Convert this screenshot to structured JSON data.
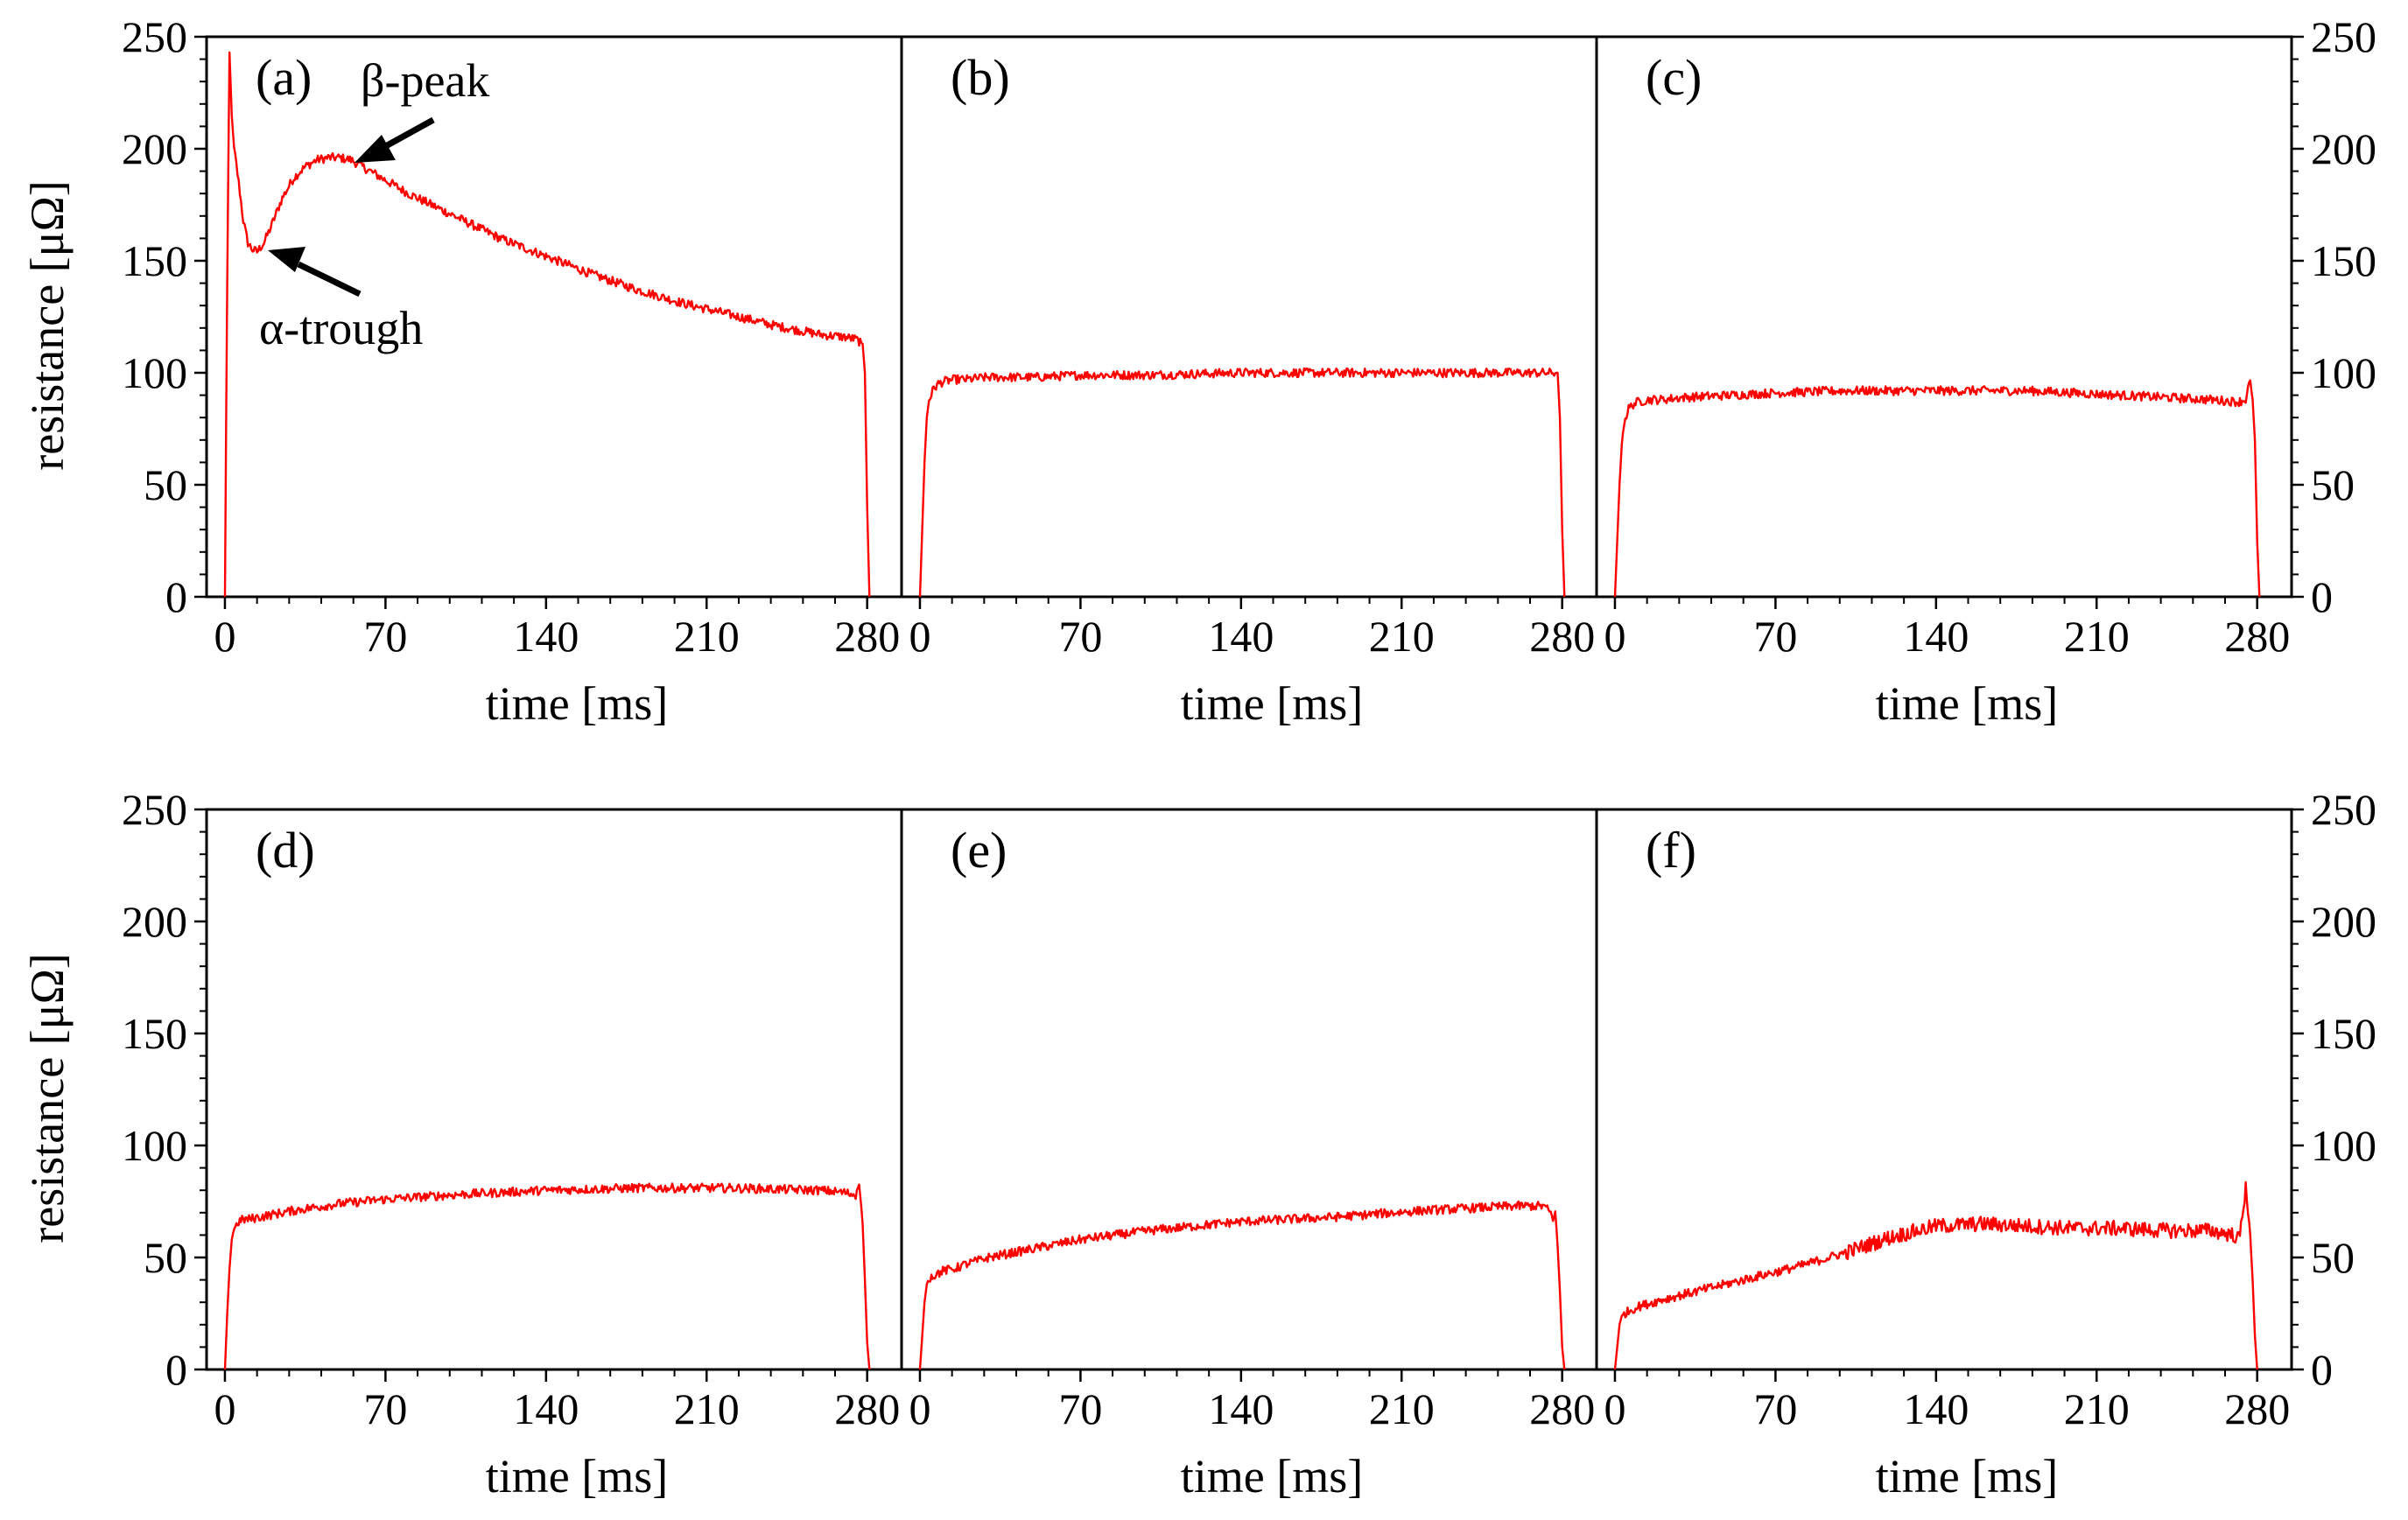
{
  "chart_data": [
    {
      "type": "line",
      "panel_label": "(a)",
      "xlabel": "time [ms]",
      "ylabel": "resistance [μΩ]",
      "xlim": [
        -8,
        295
      ],
      "ylim": [
        0,
        250
      ],
      "xticks": [
        "0",
        "70",
        "140",
        "210",
        "280"
      ],
      "yticks": [
        "0",
        "50",
        "100",
        "150",
        "200",
        "250"
      ],
      "series": [
        {
          "name": "resistance",
          "color": "#ff0000",
          "x": [
            0,
            0.6,
            1.2,
            2,
            3,
            4,
            6,
            8,
            10,
            12,
            14,
            17,
            20,
            25,
            30,
            35,
            40,
            45,
            50,
            55,
            60,
            70,
            80,
            90,
            100,
            120,
            140,
            160,
            180,
            200,
            220,
            240,
            260,
            270,
            275,
            278,
            279,
            280,
            281
          ],
          "y": [
            0,
            90,
            165,
            243,
            215,
            200,
            185,
            168,
            158,
            155,
            154,
            158,
            165,
            178,
            187,
            192,
            195,
            196,
            196,
            195,
            192,
            186,
            180,
            175,
            170,
            160,
            152,
            144,
            137,
            131,
            126,
            121,
            117,
            116,
            115,
            113,
            100,
            40,
            0
          ]
        }
      ],
      "annotations": [
        {
          "text": "β-peak",
          "points_to": {
            "x": 52,
            "y": 196
          }
        },
        {
          "text": "α-trough",
          "points_to": {
            "x": 13,
            "y": 154
          }
        }
      ]
    },
    {
      "type": "line",
      "panel_label": "(b)",
      "xlabel": "time [ms]",
      "xlim": [
        -8,
        295
      ],
      "ylim": [
        0,
        250
      ],
      "xticks": [
        "0",
        "70",
        "140",
        "210",
        "280"
      ],
      "series": [
        {
          "name": "resistance",
          "color": "#ff0000",
          "x": [
            0,
            1,
            2,
            3,
            4,
            6,
            8,
            10,
            15,
            20,
            30,
            50,
            70,
            100,
            140,
            180,
            220,
            260,
            275,
            278,
            279,
            280,
            281
          ],
          "y": [
            0,
            30,
            60,
            80,
            88,
            93,
            95,
            96,
            97,
            97,
            98,
            98,
            99,
            99,
            100,
            100,
            100,
            100,
            100,
            100,
            80,
            30,
            0
          ]
        }
      ]
    },
    {
      "type": "line",
      "panel_label": "(c)",
      "xlabel": "time [ms]",
      "xlim": [
        -8,
        295
      ],
      "ylim": [
        0,
        250
      ],
      "xticks": [
        "0",
        "70",
        "140",
        "210",
        "280"
      ],
      "yticks": [
        "0",
        "50",
        "100",
        "150",
        "200",
        "250"
      ],
      "series": [
        {
          "name": "resistance",
          "color": "#ff0000",
          "x": [
            0,
            1,
            2,
            3,
            4,
            6,
            8,
            10,
            15,
            20,
            30,
            50,
            70,
            100,
            140,
            180,
            220,
            260,
            272,
            275,
            276,
            277,
            278,
            279,
            280,
            281
          ],
          "y": [
            0,
            25,
            50,
            68,
            78,
            84,
            86,
            87,
            88,
            88,
            89,
            90,
            91,
            92,
            92,
            92,
            90,
            88,
            87,
            88,
            93,
            96,
            88,
            70,
            25,
            0
          ]
        }
      ]
    },
    {
      "type": "line",
      "panel_label": "(d)",
      "xlabel": "time [ms]",
      "ylabel": "resistance [μΩ]",
      "xlim": [
        -8,
        295
      ],
      "ylim": [
        0,
        250
      ],
      "xticks": [
        "0",
        "70",
        "140",
        "210",
        "280"
      ],
      "yticks": [
        "0",
        "50",
        "100",
        "150",
        "200",
        "250"
      ],
      "series": [
        {
          "name": "resistance",
          "color": "#ff0000",
          "x": [
            0,
            1,
            2,
            3,
            4,
            6,
            8,
            10,
            15,
            20,
            30,
            50,
            70,
            100,
            140,
            180,
            220,
            260,
            270,
            275,
            276,
            277,
            278,
            279,
            280,
            281
          ],
          "y": [
            0,
            25,
            45,
            58,
            63,
            66,
            67,
            67,
            68,
            69,
            71,
            74,
            76,
            78,
            80,
            81,
            81,
            80,
            79,
            78,
            83,
            79,
            65,
            40,
            12,
            0
          ]
        }
      ]
    },
    {
      "type": "line",
      "panel_label": "(e)",
      "xlabel": "time [ms]",
      "xlim": [
        -8,
        295
      ],
      "ylim": [
        0,
        250
      ],
      "xticks": [
        "0",
        "70",
        "140",
        "210",
        "280"
      ],
      "series": [
        {
          "name": "resistance",
          "color": "#ff0000",
          "x": [
            0,
            1,
            2,
            3,
            4,
            6,
            8,
            10,
            15,
            20,
            30,
            50,
            70,
            100,
            140,
            180,
            220,
            260,
            272,
            275,
            276,
            277,
            278,
            279,
            280,
            281
          ],
          "y": [
            0,
            15,
            30,
            38,
            41,
            42,
            43,
            44,
            45,
            47,
            50,
            54,
            58,
            62,
            66,
            68,
            71,
            73,
            73,
            70,
            66,
            72,
            55,
            35,
            10,
            0
          ]
        }
      ]
    },
    {
      "type": "line",
      "panel_label": "(f)",
      "xlabel": "time [ms]",
      "xlim": [
        -8,
        295
      ],
      "ylim": [
        0,
        250
      ],
      "xticks": [
        "0",
        "70",
        "140",
        "210",
        "280"
      ],
      "yticks": [
        "0",
        "50",
        "100",
        "150",
        "200",
        "250"
      ],
      "series": [
        {
          "name": "resistance",
          "color": "#ff0000",
          "x": [
            0,
            1,
            2,
            3,
            4,
            6,
            8,
            10,
            20,
            40,
            60,
            80,
            100,
            120,
            140,
            160,
            180,
            200,
            220,
            240,
            260,
            270,
            272,
            274,
            275,
            276,
            277,
            278,
            279,
            280
          ],
          "y": [
            0,
            10,
            20,
            24,
            25,
            26,
            27,
            28,
            31,
            36,
            41,
            46,
            52,
            59,
            64,
            65,
            64,
            63,
            63,
            62,
            62,
            60,
            58,
            70,
            84,
            72,
            60,
            40,
            15,
            0
          ]
        }
      ]
    }
  ]
}
